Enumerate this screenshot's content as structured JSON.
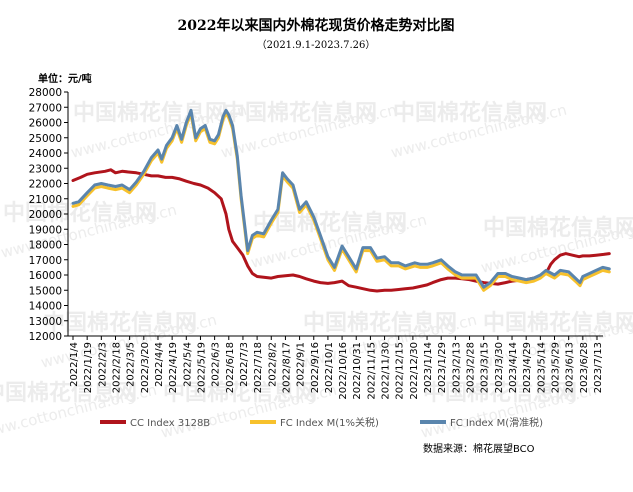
{
  "chart_data": {
    "type": "line",
    "title": "2022年以来国内外棉花现货价格走势对比图",
    "subtitle": "（2021.9.1-2023.7.26）",
    "unit_label": "单位：元/吨",
    "ylim": [
      12000,
      28000
    ],
    "y_ticks": [
      12000,
      13000,
      14000,
      15000,
      16000,
      17000,
      18000,
      19000,
      20000,
      21000,
      22000,
      23000,
      24000,
      25000,
      26000,
      27000,
      28000
    ],
    "x_ticks": [
      "2022/1/4",
      "2022/1/19",
      "2022/2/3",
      "2022/2/18",
      "2022/3/5",
      "2022/3/20",
      "2022/4/4",
      "2022/4/19",
      "2022/5/4",
      "2022/5/19",
      "2022/6/3",
      "2022/6/18",
      "2022/7/3",
      "2022/7/18",
      "2022/8/2",
      "2022/8/17",
      "2022/9/1",
      "2022/9/16",
      "2022/10/1",
      "2022/10/16",
      "2022/10/31",
      "2022/11/15",
      "2022/11/30",
      "2022/12/15",
      "2022/12/30",
      "2023/1/14",
      "2023/1/29",
      "2023/2/13",
      "2023/2/28",
      "2023/3/15",
      "2023/3/30",
      "2023/4/14",
      "2023/4/29",
      "2023/5/14",
      "2023/5/29",
      "2023/6/13",
      "2023/6/28",
      "2023/7/13"
    ],
    "legend_position": "bottom",
    "source": "数据来源：棉花展望BCO",
    "grid": false,
    "series": [
      {
        "name": "CC Index 3128B",
        "color": "#b0141c",
        "points": [
          [
            "2022/1/4",
            22200
          ],
          [
            "2022/1/12",
            22400
          ],
          [
            "2022/1/19",
            22600
          ],
          [
            "2022/1/27",
            22700
          ],
          [
            "2022/2/7",
            22800
          ],
          [
            "2022/2/13",
            22900
          ],
          [
            "2022/2/18",
            22700
          ],
          [
            "2022/2/25",
            22800
          ],
          [
            "2022/3/5",
            22750
          ],
          [
            "2022/3/12",
            22700
          ],
          [
            "2022/3/20",
            22600
          ],
          [
            "2022/3/28",
            22500
          ],
          [
            "2022/4/4",
            22500
          ],
          [
            "2022/4/12",
            22400
          ],
          [
            "2022/4/19",
            22400
          ],
          [
            "2022/4/27",
            22300
          ],
          [
            "2022/5/4",
            22150
          ],
          [
            "2022/5/12",
            22000
          ],
          [
            "2022/5/19",
            21900
          ],
          [
            "2022/5/27",
            21700
          ],
          [
            "2022/6/3",
            21400
          ],
          [
            "2022/6/10",
            21000
          ],
          [
            "2022/6/15",
            20000
          ],
          [
            "2022/6/18",
            19000
          ],
          [
            "2022/6/22",
            18200
          ],
          [
            "2022/6/27",
            17800
          ],
          [
            "2022/7/3",
            17300
          ],
          [
            "2022/7/8",
            16600
          ],
          [
            "2022/7/13",
            16100
          ],
          [
            "2022/7/18",
            15900
          ],
          [
            "2022/7/25",
            15850
          ],
          [
            "2022/8/2",
            15800
          ],
          [
            "2022/8/9",
            15900
          ],
          [
            "2022/8/17",
            15950
          ],
          [
            "2022/8/25",
            16000
          ],
          [
            "2022/9/1",
            15900
          ],
          [
            "2022/9/8",
            15750
          ],
          [
            "2022/9/16",
            15600
          ],
          [
            "2022/9/23",
            15500
          ],
          [
            "2022/10/1",
            15450
          ],
          [
            "2022/10/8",
            15500
          ],
          [
            "2022/10/16",
            15600
          ],
          [
            "2022/10/23",
            15300
          ],
          [
            "2022/10/31",
            15200
          ],
          [
            "2022/11/7",
            15100
          ],
          [
            "2022/11/15",
            15000
          ],
          [
            "2022/11/22",
            14950
          ],
          [
            "2022/11/30",
            15000
          ],
          [
            "2022/12/7",
            15000
          ],
          [
            "2022/12/15",
            15050
          ],
          [
            "2022/12/22",
            15100
          ],
          [
            "2022/12/30",
            15150
          ],
          [
            "2023/1/7",
            15250
          ],
          [
            "2023/1/14",
            15350
          ],
          [
            "2023/1/20",
            15500
          ],
          [
            "2023/1/29",
            15700
          ],
          [
            "2023/2/5",
            15800
          ],
          [
            "2023/2/13",
            15800
          ],
          [
            "2023/2/20",
            15750
          ],
          [
            "2023/2/28",
            15700
          ],
          [
            "2023/3/7",
            15600
          ],
          [
            "2023/3/15",
            15500
          ],
          [
            "2023/3/22",
            15450
          ],
          [
            "2023/3/30",
            15400
          ],
          [
            "2023/4/7",
            15500
          ],
          [
            "2023/4/14",
            15600
          ],
          [
            "2023/4/22",
            15650
          ],
          [
            "2023/4/29",
            15700
          ],
          [
            "2023/5/7",
            15800
          ],
          [
            "2023/5/14",
            15900
          ],
          [
            "2023/5/20",
            16100
          ],
          [
            "2023/5/25",
            16700
          ],
          [
            "2023/5/29",
            17000
          ],
          [
            "2023/6/4",
            17300
          ],
          [
            "2023/6/10",
            17400
          ],
          [
            "2023/6/17",
            17300
          ],
          [
            "2023/6/24",
            17200
          ],
          [
            "2023/6/28",
            17250
          ],
          [
            "2023/7/5",
            17250
          ],
          [
            "2023/7/12",
            17300
          ],
          [
            "2023/7/20",
            17350
          ],
          [
            "2023/7/26",
            17400
          ]
        ]
      },
      {
        "name": "FC Index M(1%关税)",
        "color": "#f7c12c",
        "points": [
          [
            "2022/1/4",
            20500
          ],
          [
            "2022/1/10",
            20600
          ],
          [
            "2022/1/19",
            21200
          ],
          [
            "2022/1/27",
            21700
          ],
          [
            "2022/2/3",
            21800
          ],
          [
            "2022/2/10",
            21700
          ],
          [
            "2022/2/18",
            21600
          ],
          [
            "2022/2/25",
            21700
          ],
          [
            "2022/3/5",
            21400
          ],
          [
            "2022/3/12",
            21900
          ],
          [
            "2022/3/20",
            22600
          ],
          [
            "2022/3/28",
            23500
          ],
          [
            "2022/4/4",
            24000
          ],
          [
            "2022/4/8",
            23400
          ],
          [
            "2022/4/13",
            24300
          ],
          [
            "2022/4/19",
            24800
          ],
          [
            "2022/4/24",
            25600
          ],
          [
            "2022/4/29",
            24700
          ],
          [
            "2022/5/4",
            25800
          ],
          [
            "2022/5/9",
            26600
          ],
          [
            "2022/5/14",
            24800
          ],
          [
            "2022/5/19",
            25400
          ],
          [
            "2022/5/24",
            25600
          ],
          [
            "2022/5/29",
            24700
          ],
          [
            "2022/6/3",
            24600
          ],
          [
            "2022/6/7",
            25000
          ],
          [
            "2022/6/12",
            26200
          ],
          [
            "2022/6/15",
            26600
          ],
          [
            "2022/6/18",
            26300
          ],
          [
            "2022/6/22",
            25600
          ],
          [
            "2022/6/27",
            23600
          ],
          [
            "2022/7/1",
            21000
          ],
          [
            "2022/7/5",
            19000
          ],
          [
            "2022/7/8",
            17400
          ],
          [
            "2022/7/13",
            18400
          ],
          [
            "2022/7/18",
            18600
          ],
          [
            "2022/7/25",
            18500
          ],
          [
            "2022/8/2",
            19400
          ],
          [
            "2022/8/9",
            20100
          ],
          [
            "2022/8/14",
            22500
          ],
          [
            "2022/8/19",
            22100
          ],
          [
            "2022/8/25",
            21700
          ],
          [
            "2022/9/1",
            20100
          ],
          [
            "2022/9/8",
            20600
          ],
          [
            "2022/9/16",
            19600
          ],
          [
            "2022/9/23",
            18400
          ],
          [
            "2022/10/1",
            17000
          ],
          [
            "2022/10/8",
            16300
          ],
          [
            "2022/10/16",
            17700
          ],
          [
            "2022/10/23",
            17000
          ],
          [
            "2022/10/31",
            16200
          ],
          [
            "2022/11/7",
            17600
          ],
          [
            "2022/11/15",
            17600
          ],
          [
            "2022/11/22",
            16900
          ],
          [
            "2022/11/30",
            17000
          ],
          [
            "2022/12/7",
            16600
          ],
          [
            "2022/12/15",
            16600
          ],
          [
            "2022/12/22",
            16400
          ],
          [
            "2023/1/1",
            16600
          ],
          [
            "2023/1/7",
            16500
          ],
          [
            "2023/1/14",
            16500
          ],
          [
            "2023/1/20",
            16600
          ],
          [
            "2023/1/29",
            16800
          ],
          [
            "2023/2/5",
            16400
          ],
          [
            "2023/2/13",
            16000
          ],
          [
            "2023/2/20",
            15800
          ],
          [
            "2023/2/28",
            15800
          ],
          [
            "2023/3/7",
            15800
          ],
          [
            "2023/3/15",
            15000
          ],
          [
            "2023/3/22",
            15300
          ],
          [
            "2023/3/30",
            15900
          ],
          [
            "2023/4/7",
            15900
          ],
          [
            "2023/4/14",
            15700
          ],
          [
            "2023/4/22",
            15600
          ],
          [
            "2023/4/29",
            15500
          ],
          [
            "2023/5/7",
            15600
          ],
          [
            "2023/5/14",
            15800
          ],
          [
            "2023/5/20",
            16100
          ],
          [
            "2023/5/29",
            15800
          ],
          [
            "2023/6/4",
            16100
          ],
          [
            "2023/6/13",
            16000
          ],
          [
            "2023/6/20",
            15600
          ],
          [
            "2023/6/25",
            15300
          ],
          [
            "2023/6/28",
            15700
          ],
          [
            "2023/7/5",
            15900
          ],
          [
            "2023/7/12",
            16100
          ],
          [
            "2023/7/19",
            16300
          ],
          [
            "2023/7/26",
            16200
          ]
        ]
      },
      {
        "name": "FC Index M(滑准税)",
        "color": "#5a85ad",
        "points": [
          [
            "2022/1/4",
            20700
          ],
          [
            "2022/1/10",
            20800
          ],
          [
            "2022/1/19",
            21400
          ],
          [
            "2022/1/27",
            21900
          ],
          [
            "2022/2/3",
            22000
          ],
          [
            "2022/2/10",
            21900
          ],
          [
            "2022/2/18",
            21800
          ],
          [
            "2022/2/25",
            21900
          ],
          [
            "2022/3/5",
            21600
          ],
          [
            "2022/3/12",
            22100
          ],
          [
            "2022/3/20",
            22800
          ],
          [
            "2022/3/28",
            23700
          ],
          [
            "2022/4/4",
            24200
          ],
          [
            "2022/4/8",
            23600
          ],
          [
            "2022/4/13",
            24500
          ],
          [
            "2022/4/19",
            25000
          ],
          [
            "2022/4/24",
            25800
          ],
          [
            "2022/4/29",
            24900
          ],
          [
            "2022/5/4",
            26000
          ],
          [
            "2022/5/9",
            26800
          ],
          [
            "2022/5/14",
            25000
          ],
          [
            "2022/5/19",
            25600
          ],
          [
            "2022/5/24",
            25800
          ],
          [
            "2022/5/29",
            24900
          ],
          [
            "2022/6/3",
            24800
          ],
          [
            "2022/6/7",
            25200
          ],
          [
            "2022/6/12",
            26400
          ],
          [
            "2022/6/15",
            26800
          ],
          [
            "2022/6/18",
            26500
          ],
          [
            "2022/6/22",
            25800
          ],
          [
            "2022/6/27",
            23800
          ],
          [
            "2022/7/1",
            21200
          ],
          [
            "2022/7/5",
            19200
          ],
          [
            "2022/7/8",
            17600
          ],
          [
            "2022/7/13",
            18600
          ],
          [
            "2022/7/18",
            18800
          ],
          [
            "2022/7/25",
            18700
          ],
          [
            "2022/8/2",
            19600
          ],
          [
            "2022/8/9",
            20300
          ],
          [
            "2022/8/14",
            22700
          ],
          [
            "2022/8/19",
            22300
          ],
          [
            "2022/8/25",
            21900
          ],
          [
            "2022/9/1",
            20300
          ],
          [
            "2022/9/8",
            20800
          ],
          [
            "2022/9/16",
            19800
          ],
          [
            "2022/9/23",
            18600
          ],
          [
            "2022/10/1",
            17200
          ],
          [
            "2022/10/8",
            16500
          ],
          [
            "2022/10/16",
            17900
          ],
          [
            "2022/10/23",
            17200
          ],
          [
            "2022/10/31",
            16400
          ],
          [
            "2022/11/7",
            17800
          ],
          [
            "2022/11/15",
            17800
          ],
          [
            "2022/11/22",
            17100
          ],
          [
            "2022/11/30",
            17200
          ],
          [
            "2022/12/7",
            16800
          ],
          [
            "2022/12/15",
            16800
          ],
          [
            "2022/12/22",
            16600
          ],
          [
            "2023/1/1",
            16800
          ],
          [
            "2023/1/7",
            16700
          ],
          [
            "2023/1/14",
            16700
          ],
          [
            "2023/1/20",
            16800
          ],
          [
            "2023/1/29",
            17000
          ],
          [
            "2023/2/5",
            16600
          ],
          [
            "2023/2/13",
            16200
          ],
          [
            "2023/2/20",
            16000
          ],
          [
            "2023/2/28",
            16000
          ],
          [
            "2023/3/7",
            16000
          ],
          [
            "2023/3/15",
            15200
          ],
          [
            "2023/3/22",
            15500
          ],
          [
            "2023/3/30",
            16100
          ],
          [
            "2023/4/7",
            16100
          ],
          [
            "2023/4/14",
            15900
          ],
          [
            "2023/4/22",
            15800
          ],
          [
            "2023/4/29",
            15700
          ],
          [
            "2023/5/7",
            15800
          ],
          [
            "2023/5/14",
            16000
          ],
          [
            "2023/5/20",
            16300
          ],
          [
            "2023/5/29",
            16000
          ],
          [
            "2023/6/4",
            16300
          ],
          [
            "2023/6/13",
            16200
          ],
          [
            "2023/6/20",
            15800
          ],
          [
            "2023/6/25",
            15500
          ],
          [
            "2023/6/28",
            15900
          ],
          [
            "2023/7/5",
            16100
          ],
          [
            "2023/7/12",
            16300
          ],
          [
            "2023/7/19",
            16500
          ],
          [
            "2023/7/26",
            16400
          ]
        ]
      }
    ]
  },
  "watermark": {
    "brand": "中国棉花信息网",
    "site": "www.cottonchina.org.cn"
  }
}
